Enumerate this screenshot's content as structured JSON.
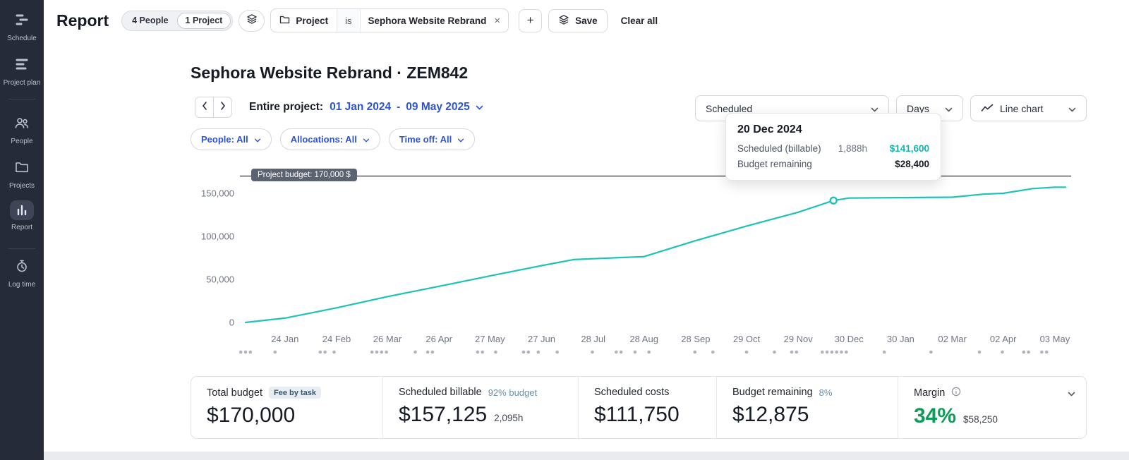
{
  "colors": {
    "accent_teal": "#1fc2b6",
    "link_blue": "#2d54d8",
    "margin_green": "#0e9d58",
    "sidebar_bg": "#262b39",
    "budget_pill_bg": "#5b6270"
  },
  "icons": {
    "sidebar": [
      "schedule-icon",
      "project-plan-icon",
      "people-icon",
      "projects-icon",
      "report-icon",
      "log-time-icon"
    ],
    "topbar": [
      "stack-icon",
      "folder-icon",
      "close-icon",
      "plus-icon"
    ],
    "controls": [
      "chevron-left-icon",
      "chevron-right-icon",
      "chevron-down-icon",
      "line-chart-icon",
      "info-icon"
    ]
  },
  "sidebar": {
    "items": [
      {
        "id": "schedule",
        "label": "Schedule",
        "active": false
      },
      {
        "id": "project-plan",
        "label": "Project plan",
        "active": false
      },
      {
        "id": "people",
        "label": "People",
        "active": false
      },
      {
        "id": "projects",
        "label": "Projects",
        "active": false
      },
      {
        "id": "report",
        "label": "Report",
        "active": true
      },
      {
        "id": "log-time",
        "label": "Log time",
        "active": false
      }
    ]
  },
  "topbar": {
    "title": "Report",
    "people_pill": "4 People",
    "project_pill": "1 Project",
    "filter_chip": {
      "entity": "Project",
      "operator": "is",
      "value": "Sephora Website Rebrand",
      "remove": "×"
    },
    "add_button": "+",
    "save_label": "Save",
    "clear_all_label": "Clear all"
  },
  "report": {
    "title": "Sephora Website Rebrand · ZEM842",
    "range_label": "Entire project:",
    "range_start": "01 Jan 2024",
    "range_separator": "-",
    "range_end": "09 May 2025",
    "controls": {
      "metric_select": "Scheduled",
      "interval_select": "Days",
      "chart_type_select": "Line chart"
    },
    "filters": [
      {
        "label": "People: All"
      },
      {
        "label": "Allocations: All"
      },
      {
        "label": "Time off: All"
      }
    ]
  },
  "tooltip": {
    "date": "20 Dec 2024",
    "rows": [
      {
        "label": "Scheduled (billable)",
        "hours": "1,888h",
        "value": "$141,600",
        "highlight": true
      },
      {
        "label": "Budget remaining",
        "hours": "",
        "value": "$28,400",
        "highlight": false
      }
    ]
  },
  "chart_data": {
    "type": "line",
    "title": "Cumulative scheduled billable amount vs project budget",
    "xlabel": "",
    "ylabel": "$",
    "ylim": [
      0,
      175000
    ],
    "yticks": [
      0,
      50000,
      100000,
      150000
    ],
    "grid": false,
    "legend_position": "none",
    "budget_line": {
      "label": "Project budget: 170,000 $",
      "value": 170000
    },
    "x_ticks": [
      {
        "label": "24 Jan",
        "t": 0.048
      },
      {
        "label": "24 Feb",
        "t": 0.111
      },
      {
        "label": "26 Mar",
        "t": 0.173
      },
      {
        "label": "26 Apr",
        "t": 0.236
      },
      {
        "label": "27 May",
        "t": 0.298
      },
      {
        "label": "27 Jun",
        "t": 0.361
      },
      {
        "label": "28 Jul",
        "t": 0.424
      },
      {
        "label": "28 Aug",
        "t": 0.486
      },
      {
        "label": "28 Sep",
        "t": 0.549
      },
      {
        "label": "29 Oct",
        "t": 0.611
      },
      {
        "label": "29 Nov",
        "t": 0.674
      },
      {
        "label": "30 Dec",
        "t": 0.736
      },
      {
        "label": "30 Jan",
        "t": 0.799
      },
      {
        "label": "02 Mar",
        "t": 0.862
      },
      {
        "label": "02 Apr",
        "t": 0.924
      },
      {
        "label": "03 May",
        "t": 0.987
      }
    ],
    "series": [
      {
        "name": "Scheduled (billable)",
        "color": "#1fc2b6",
        "points": [
          {
            "t": 0.0,
            "v": 0
          },
          {
            "t": 0.048,
            "v": 5000
          },
          {
            "t": 0.111,
            "v": 17000
          },
          {
            "t": 0.173,
            "v": 30000
          },
          {
            "t": 0.236,
            "v": 42000
          },
          {
            "t": 0.298,
            "v": 54000
          },
          {
            "t": 0.361,
            "v": 66000
          },
          {
            "t": 0.4,
            "v": 73000
          },
          {
            "t": 0.424,
            "v": 74000
          },
          {
            "t": 0.486,
            "v": 76500
          },
          {
            "t": 0.549,
            "v": 95000
          },
          {
            "t": 0.611,
            "v": 112000
          },
          {
            "t": 0.674,
            "v": 128000
          },
          {
            "t": 0.717,
            "v": 141600
          },
          {
            "t": 0.736,
            "v": 144500
          },
          {
            "t": 0.799,
            "v": 145000
          },
          {
            "t": 0.862,
            "v": 145500
          },
          {
            "t": 0.9,
            "v": 149000
          },
          {
            "t": 0.924,
            "v": 150000
          },
          {
            "t": 0.96,
            "v": 155500
          },
          {
            "t": 0.987,
            "v": 157125
          },
          {
            "t": 1.0,
            "v": 157125
          }
        ]
      }
    ],
    "marker": {
      "t": 0.717,
      "v": 141600,
      "date": "20 Dec 2024"
    },
    "milestone_dots": [
      {
        "t": 0.0,
        "count": 3
      },
      {
        "t": 0.036,
        "count": 1
      },
      {
        "t": 0.094,
        "count": 2
      },
      {
        "t": 0.108,
        "count": 1
      },
      {
        "t": 0.163,
        "count": 4
      },
      {
        "t": 0.207,
        "count": 1
      },
      {
        "t": 0.225,
        "count": 2
      },
      {
        "t": 0.286,
        "count": 2
      },
      {
        "t": 0.305,
        "count": 1
      },
      {
        "t": 0.342,
        "count": 2
      },
      {
        "t": 0.357,
        "count": 1
      },
      {
        "t": 0.38,
        "count": 1
      },
      {
        "t": 0.423,
        "count": 1
      },
      {
        "t": 0.455,
        "count": 2
      },
      {
        "t": 0.475,
        "count": 1
      },
      {
        "t": 0.492,
        "count": 1
      },
      {
        "t": 0.548,
        "count": 1
      },
      {
        "t": 0.57,
        "count": 1
      },
      {
        "t": 0.611,
        "count": 1
      },
      {
        "t": 0.645,
        "count": 1
      },
      {
        "t": 0.669,
        "count": 2
      },
      {
        "t": 0.718,
        "count": 6
      },
      {
        "t": 0.779,
        "count": 1
      },
      {
        "t": 0.836,
        "count": 1
      },
      {
        "t": 0.895,
        "count": 1
      },
      {
        "t": 0.923,
        "count": 1
      },
      {
        "t": 0.952,
        "count": 2
      },
      {
        "t": 0.974,
        "count": 2
      }
    ]
  },
  "stats": {
    "cards": [
      {
        "label": "Total budget",
        "badge": "Fee by task",
        "value": "$170,000"
      },
      {
        "label": "Scheduled billable",
        "percent": "92% budget",
        "value": "$157,125",
        "sub": "2,095h"
      },
      {
        "label": "Scheduled costs",
        "value": "$111,750"
      },
      {
        "label": "Budget remaining",
        "percent": "8%",
        "value": "$12,875"
      },
      {
        "label": "Margin",
        "value": "34%",
        "sub": "$58,250"
      }
    ]
  }
}
